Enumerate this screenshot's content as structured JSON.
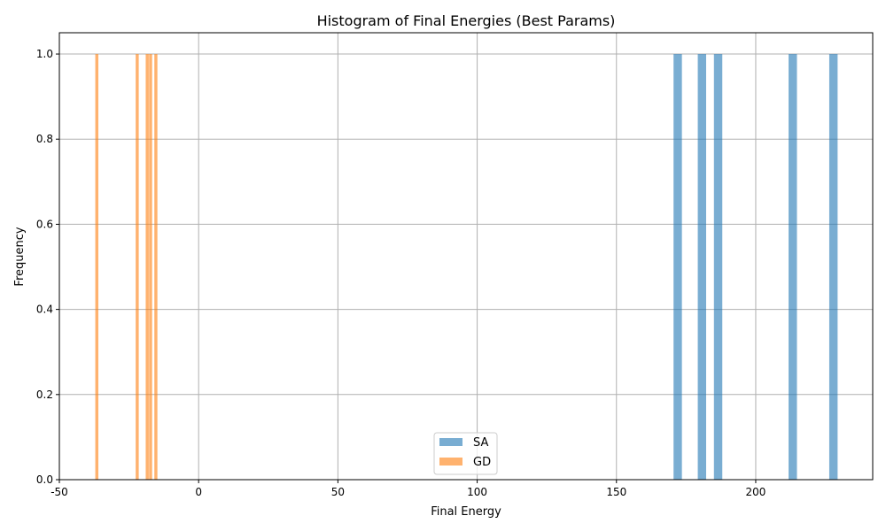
{
  "chart_data": {
    "type": "bar",
    "title": "Histogram of Final Energies (Best Params)",
    "xlabel": "Final Energy",
    "ylabel": "Frequency",
    "xlim": [
      -50,
      242
    ],
    "ylim": [
      0,
      1.05
    ],
    "xticks": [
      "-50",
      "0",
      "50",
      "100",
      "150",
      "200"
    ],
    "xtick_values": [
      -50,
      0,
      50,
      100,
      150,
      200
    ],
    "yticks": [
      "0.0",
      "0.2",
      "0.4",
      "0.6",
      "0.8",
      "1.0"
    ],
    "ytick_values": [
      0,
      0.2,
      0.4,
      0.6,
      0.8,
      1.0
    ],
    "grid": true,
    "legend_position": "bottom-center",
    "series": [
      {
        "name": "SA",
        "color": "#1f77b4",
        "bins": [
          {
            "x0": 170.5,
            "x1": 173.5,
            "value": 1
          },
          {
            "x0": 179.2,
            "x1": 182.2,
            "value": 1
          },
          {
            "x0": 185.0,
            "x1": 188.0,
            "value": 1
          },
          {
            "x0": 211.8,
            "x1": 214.8,
            "value": 1
          },
          {
            "x0": 226.4,
            "x1": 229.4,
            "value": 1
          }
        ]
      },
      {
        "name": "GD",
        "color": "#ff7f0e",
        "bins": [
          {
            "x0": -37.1,
            "x1": -36.0,
            "value": 1
          },
          {
            "x0": -22.6,
            "x1": -21.5,
            "value": 1
          },
          {
            "x0": -19.0,
            "x1": -17.9,
            "value": 1
          },
          {
            "x0": -17.8,
            "x1": -16.7,
            "value": 1
          },
          {
            "x0": -15.9,
            "x1": -14.8,
            "value": 1
          }
        ]
      }
    ]
  }
}
